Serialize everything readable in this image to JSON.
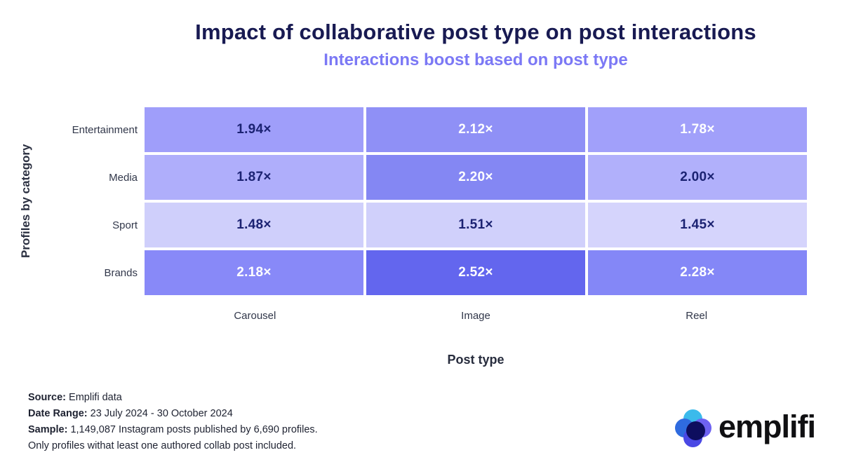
{
  "header": {
    "title": "Impact of collaborative post type on post interactions",
    "subtitle": "Interactions boost based on post type"
  },
  "axes": {
    "y_title": "Profiles by category",
    "x_title": "Post type"
  },
  "heatmap": {
    "row_labels": [
      "Entertainment",
      "Media",
      "Sport",
      "Brands"
    ],
    "col_labels": [
      "Carousel",
      "Image",
      "Reel"
    ],
    "cells": [
      {
        "row": "Entertainment",
        "col": "Carousel",
        "display": "1.94×",
        "bg": "#9f9efa",
        "fg": "#1b2272"
      },
      {
        "row": "Entertainment",
        "col": "Image",
        "display": "2.12×",
        "bg": "#8f90f6",
        "fg": "#ffffff"
      },
      {
        "row": "Entertainment",
        "col": "Reel",
        "display": "1.78×",
        "bg": "#a1a0fa",
        "fg": "#ffffff"
      },
      {
        "row": "Media",
        "col": "Carousel",
        "display": "1.87×",
        "bg": "#afaefb",
        "fg": "#1b2272"
      },
      {
        "row": "Media",
        "col": "Image",
        "display": "2.20×",
        "bg": "#8487f3",
        "fg": "#ffffff"
      },
      {
        "row": "Media",
        "col": "Reel",
        "display": "2.00×",
        "bg": "#b1b0fb",
        "fg": "#1b2272"
      },
      {
        "row": "Sport",
        "col": "Carousel",
        "display": "1.48×",
        "bg": "#cfcffb",
        "fg": "#1b2272"
      },
      {
        "row": "Sport",
        "col": "Image",
        "display": "1.51×",
        "bg": "#d0d0fb",
        "fg": "#1b2272"
      },
      {
        "row": "Sport",
        "col": "Reel",
        "display": "1.45×",
        "bg": "#d5d4fc",
        "fg": "#1b2272"
      },
      {
        "row": "Brands",
        "col": "Carousel",
        "display": "2.18×",
        "bg": "#8889f8",
        "fg": "#ffffff"
      },
      {
        "row": "Brands",
        "col": "Image",
        "display": "2.52×",
        "bg": "#6366ee",
        "fg": "#ffffff"
      },
      {
        "row": "Brands",
        "col": "Reel",
        "display": "2.28×",
        "bg": "#8487f7",
        "fg": "#ffffff"
      }
    ]
  },
  "footer": {
    "lines": [
      {
        "label": "Source:",
        "text": " Emplifi data"
      },
      {
        "label": "Date Range:",
        "text": " 23 July 2024 - 30 October 2024"
      },
      {
        "label": "Sample:",
        "text": " 1,149,087 Instagram posts published by 6,690 profiles."
      },
      {
        "label": "",
        "text": "Only profiles withat least one authored collab post included."
      }
    ]
  },
  "logo": {
    "wordmark": "emplifi",
    "petal_top": "#3bbaeb",
    "petal_left": "#2f6bdf",
    "petal_right": "#6e62f2",
    "petal_bottom": "#4a48e4",
    "center": "#0d0d5e"
  },
  "chart_data": {
    "type": "heatmap",
    "title": "Impact of collaborative post type on post interactions",
    "subtitle": "Interactions boost based on post type",
    "xlabel": "Post type",
    "ylabel": "Profiles by category",
    "columns": [
      "Carousel",
      "Image",
      "Reel"
    ],
    "rows": [
      "Entertainment",
      "Media",
      "Sport",
      "Brands"
    ],
    "values": [
      [
        1.94,
        2.12,
        1.78
      ],
      [
        1.87,
        2.2,
        2.0
      ],
      [
        1.48,
        1.51,
        1.45
      ],
      [
        2.18,
        2.52,
        2.28
      ]
    ],
    "value_suffix": "×",
    "legend": "none",
    "grid": false
  }
}
